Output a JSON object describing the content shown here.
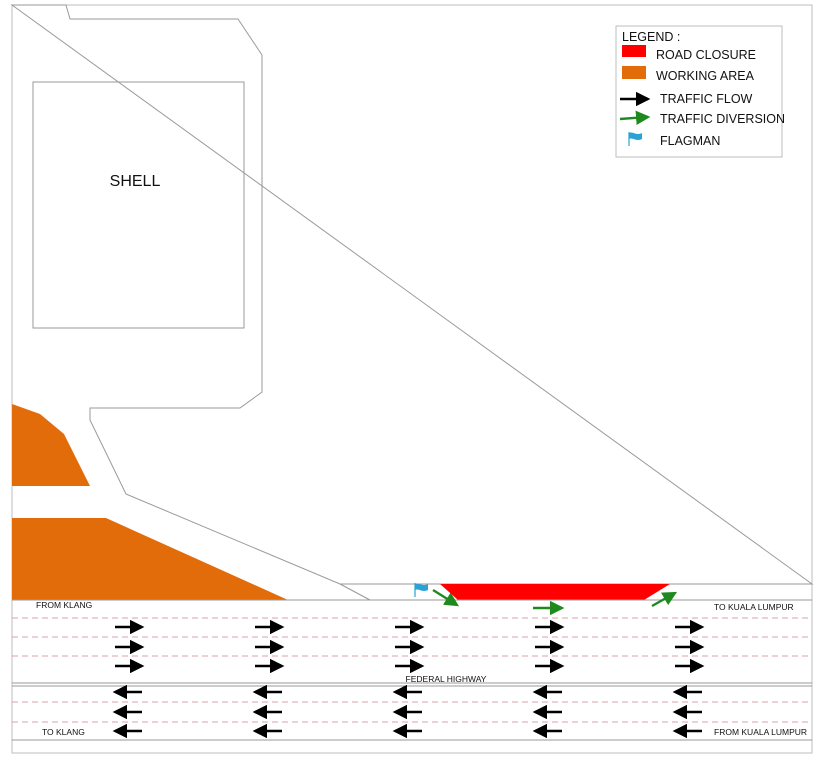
{
  "building": {
    "label": "SHELL"
  },
  "legend": {
    "title": "LEGEND :",
    "items": [
      {
        "key": "road_closure",
        "label": "ROAD CLOSURE",
        "color": "#ff0000",
        "symbol": "red-block-swatch"
      },
      {
        "key": "working_area",
        "label": "WORKING AREA",
        "color": "#e36c0a",
        "symbol": "orange-block-swatch"
      },
      {
        "key": "traffic_flow",
        "label": "TRAFFIC FLOW",
        "color": "#000000",
        "symbol": "black-arrow-icon"
      },
      {
        "key": "traffic_diversion",
        "label": "TRAFFIC DIVERSION",
        "color": "#1e8a1e",
        "symbol": "green-arrow-icon"
      },
      {
        "key": "flagman",
        "label": "FLAGMAN",
        "color": "#29a3d6",
        "symbol": "flag-icon"
      }
    ]
  },
  "road": {
    "name": "FEDERAL HIGHWAY",
    "labels": {
      "from_klang": "FROM KLANG",
      "to_kuala_lumpur": "TO KUALA LUMPUR",
      "to_klang": "TO KLANG",
      "from_kuala_lumpur": "FROM KUALA LUMPUR"
    },
    "eastbound_lanes": 3,
    "westbound_lanes": 3,
    "eastbound_direction": "right",
    "westbound_direction": "left"
  },
  "colors": {
    "road_closure": "#ff0000",
    "working_area": "#e36c0a",
    "traffic_flow": "#000000",
    "traffic_diversion": "#1e8a1e",
    "flagman": "#29a3d6",
    "lane_divider": "#d9a0a8",
    "outline": "#9a9a9a"
  }
}
